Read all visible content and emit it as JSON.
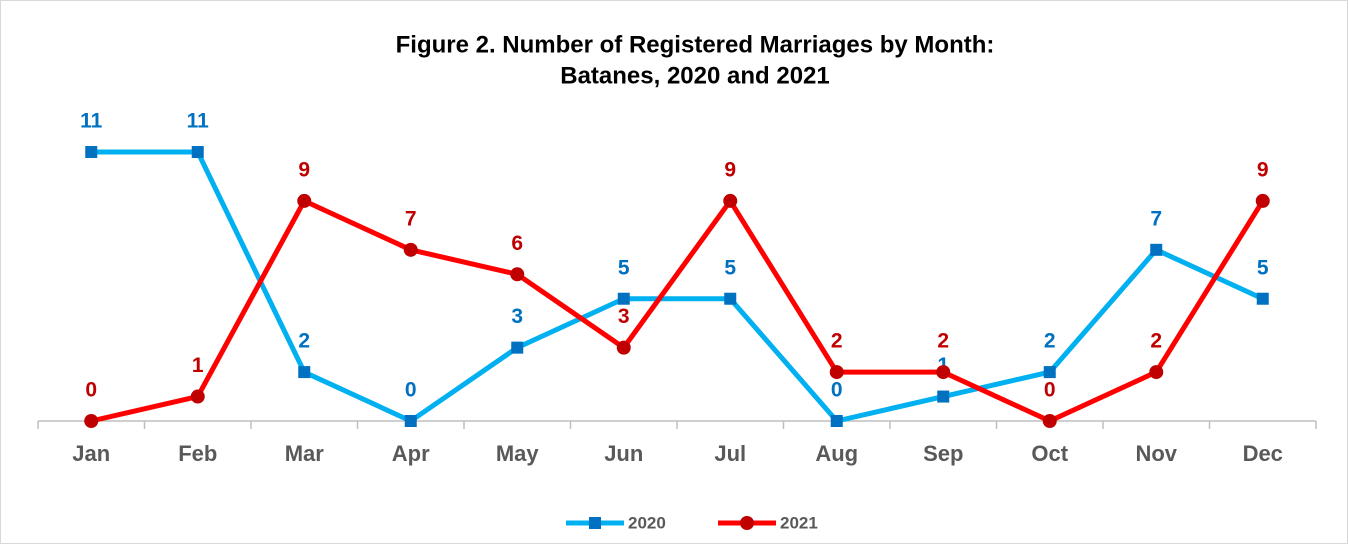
{
  "chart_data": {
    "type": "line",
    "title": [
      "Figure 2. Number of Registered Marriages by Month:",
      "Batanes, 2020 and 2021"
    ],
    "categories": [
      "Jan",
      "Feb",
      "Mar",
      "Apr",
      "May",
      "Jun",
      "Jul",
      "Aug",
      "Sep",
      "Oct",
      "Nov",
      "Dec"
    ],
    "series": [
      {
        "name": "2020",
        "color": "#00b0f0",
        "marker_color": "#0070c0",
        "marker": "square",
        "label_color": "#0070c0",
        "values": [
          11,
          11,
          2,
          0,
          3,
          5,
          5,
          0,
          1,
          2,
          7,
          5
        ]
      },
      {
        "name": "2021",
        "color": "#ff0000",
        "marker_color": "#c00000",
        "marker": "circle",
        "label_color": "#c00000",
        "values": [
          0,
          1,
          9,
          7,
          6,
          3,
          9,
          2,
          2,
          0,
          2,
          9
        ]
      }
    ],
    "ylim": [
      0,
      11
    ],
    "legend": "bottom"
  }
}
